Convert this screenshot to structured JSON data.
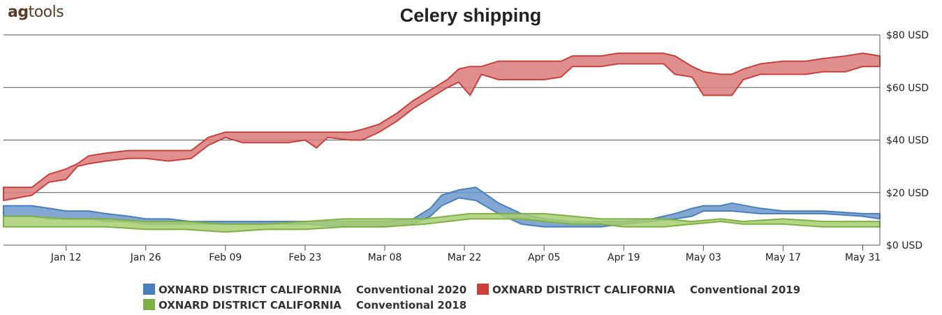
{
  "brand": {
    "logo_ag": "ag",
    "logo_tools": "tools"
  },
  "chart_data": {
    "type": "area",
    "title": "Celery shipping",
    "xlabel": "",
    "ylabel": "",
    "grid": true,
    "legend_position": "bottom",
    "x_range": [
      "Jan 01",
      "Jun 03"
    ],
    "x_ticks": [
      "Jan 12",
      "Jan 26",
      "Feb 09",
      "Feb 23",
      "Mar 08",
      "Mar 22",
      "Apr 05",
      "Apr 19",
      "May 03",
      "May 17",
      "May 31"
    ],
    "ylim": [
      0,
      80
    ],
    "y_ticks": [
      "$0 USD",
      "$20 USD",
      "$40 USD",
      "$60 USD",
      "$80 USD"
    ],
    "y_tick_values": [
      0,
      20,
      40,
      60,
      80
    ],
    "series": [
      {
        "name": "OXNARD DISTRICT CALIFORNIA     Conventional 2019",
        "color": "#c9403b",
        "fill": "#d97b79",
        "points": [
          [
            "Jan 01",
            17,
            22
          ],
          [
            "Jan 06",
            19,
            22
          ],
          [
            "Jan 09",
            24,
            27
          ],
          [
            "Jan 12",
            25,
            29
          ],
          [
            "Jan 14",
            30,
            31
          ],
          [
            "Jan 16",
            31,
            34
          ],
          [
            "Jan 19",
            32,
            35
          ],
          [
            "Jan 23",
            33,
            36
          ],
          [
            "Jan 26",
            33,
            36
          ],
          [
            "Jan 30",
            32,
            36
          ],
          [
            "Feb 03",
            33,
            36
          ],
          [
            "Feb 06",
            38,
            41
          ],
          [
            "Feb 09",
            41,
            43
          ],
          [
            "Feb 12",
            39,
            43
          ],
          [
            "Feb 16",
            39,
            43
          ],
          [
            "Feb 20",
            39,
            43
          ],
          [
            "Feb 23",
            40,
            43
          ],
          [
            "Feb 25",
            37,
            43
          ],
          [
            "Feb 27",
            41,
            43
          ],
          [
            "Mar 02",
            40,
            43
          ],
          [
            "Mar 04",
            40,
            44
          ],
          [
            "Mar 07",
            43,
            46
          ],
          [
            "Mar 10",
            47,
            50
          ],
          [
            "Mar 13",
            52,
            55
          ],
          [
            "Mar 16",
            56,
            59
          ],
          [
            "Mar 19",
            60,
            63
          ],
          [
            "Mar 21",
            62,
            67
          ],
          [
            "Mar 23",
            57,
            68
          ],
          [
            "Mar 25",
            65,
            68
          ],
          [
            "Mar 28",
            63,
            70
          ],
          [
            "Apr 01",
            63,
            70
          ],
          [
            "Apr 05",
            63,
            70
          ],
          [
            "Apr 08",
            64,
            70
          ],
          [
            "Apr 10",
            68,
            72
          ],
          [
            "Apr 15",
            68,
            72
          ],
          [
            "Apr 18",
            69,
            73
          ],
          [
            "Apr 22",
            69,
            73
          ],
          [
            "Apr 26",
            69,
            73
          ],
          [
            "Apr 28",
            65,
            72
          ],
          [
            "May 01",
            64,
            68
          ],
          [
            "May 03",
            57,
            66
          ],
          [
            "May 06",
            57,
            65
          ],
          [
            "May 08",
            57,
            65
          ],
          [
            "May 10",
            63,
            67
          ],
          [
            "May 13",
            65,
            69
          ],
          [
            "May 17",
            65,
            70
          ],
          [
            "May 21",
            65,
            70
          ],
          [
            "May 24",
            66,
            71
          ],
          [
            "May 28",
            66,
            72
          ],
          [
            "May 31",
            68,
            73
          ],
          [
            "Jun 03",
            68,
            72
          ]
        ]
      },
      {
        "name": "OXNARD DISTRICT CALIFORNIA     Conventional 2020",
        "color": "#4a7fbd",
        "fill": "#6b98ca",
        "points": [
          [
            "Jan 01",
            11,
            15
          ],
          [
            "Jan 06",
            11,
            15
          ],
          [
            "Jan 09",
            10,
            14
          ],
          [
            "Jan 12",
            10,
            13
          ],
          [
            "Jan 16",
            10,
            13
          ],
          [
            "Jan 19",
            9,
            12
          ],
          [
            "Jan 23",
            9,
            11
          ],
          [
            "Jan 26",
            8,
            10
          ],
          [
            "Jan 30",
            8,
            10
          ],
          [
            "Feb 03",
            8,
            9
          ],
          [
            "Feb 09",
            8,
            9
          ],
          [
            "Feb 16",
            8,
            9
          ],
          [
            "Feb 23",
            8,
            9
          ],
          [
            "Mar 01",
            7,
            9
          ],
          [
            "Mar 08",
            7,
            9
          ],
          [
            "Mar 13",
            8,
            10
          ],
          [
            "Mar 16",
            11,
            14
          ],
          [
            "Mar 18",
            15,
            19
          ],
          [
            "Mar 21",
            18,
            21
          ],
          [
            "Mar 24",
            17,
            22
          ],
          [
            "Mar 28",
            12,
            16
          ],
          [
            "Apr 01",
            8,
            12
          ],
          [
            "Apr 05",
            7,
            10
          ],
          [
            "Apr 10",
            7,
            9
          ],
          [
            "Apr 15",
            7,
            9
          ],
          [
            "Apr 19",
            8,
            9
          ],
          [
            "Apr 24",
            9,
            10
          ],
          [
            "Apr 28",
            10,
            12
          ],
          [
            "May 01",
            11,
            14
          ],
          [
            "May 03",
            13,
            15
          ],
          [
            "May 06",
            13,
            15
          ],
          [
            "May 08",
            13,
            16
          ],
          [
            "May 13",
            12,
            14
          ],
          [
            "May 17",
            12,
            13
          ],
          [
            "May 24",
            12,
            13
          ],
          [
            "May 31",
            11,
            12
          ],
          [
            "Jun 03",
            10,
            12
          ]
        ]
      },
      {
        "name": "OXNARD DISTRICT CALIFORNIA     Conventional 2018",
        "color": "#7fb045",
        "fill": "#a9cf72",
        "points": [
          [
            "Jan 01",
            7,
            11
          ],
          [
            "Jan 06",
            7,
            11
          ],
          [
            "Jan 12",
            7,
            10
          ],
          [
            "Jan 19",
            7,
            10
          ],
          [
            "Jan 26",
            6,
            9
          ],
          [
            "Feb 02",
            6,
            9
          ],
          [
            "Feb 09",
            5,
            8
          ],
          [
            "Feb 16",
            6,
            8
          ],
          [
            "Feb 23",
            6,
            9
          ],
          [
            "Mar 01",
            7,
            10
          ],
          [
            "Mar 08",
            7,
            10
          ],
          [
            "Mar 15",
            8,
            10
          ],
          [
            "Mar 19",
            9,
            11
          ],
          [
            "Mar 23",
            10,
            12
          ],
          [
            "Mar 26",
            10,
            12
          ],
          [
            "Apr 01",
            10,
            12
          ],
          [
            "Apr 05",
            9,
            12
          ],
          [
            "Apr 10",
            8,
            11
          ],
          [
            "Apr 15",
            8,
            10
          ],
          [
            "Apr 19",
            7,
            10
          ],
          [
            "Apr 26",
            7,
            10
          ],
          [
            "May 01",
            8,
            9
          ],
          [
            "May 06",
            9,
            10
          ],
          [
            "May 10",
            8,
            9
          ],
          [
            "May 17",
            8,
            10
          ],
          [
            "May 24",
            7,
            9
          ],
          [
            "May 31",
            7,
            9
          ],
          [
            "Jun 03",
            7,
            9
          ]
        ]
      }
    ],
    "legend": [
      {
        "name": "OXNARD DISTRICT CALIFORNIA",
        "suffix": "Conventional 2020",
        "color": "#4a7fbd"
      },
      {
        "name": "OXNARD DISTRICT CALIFORNIA",
        "suffix": "Conventional 2019",
        "color": "#c9403b"
      },
      {
        "name": "OXNARD DISTRICT CALIFORNIA",
        "suffix": "Conventional 2018",
        "color": "#7fb045"
      }
    ]
  }
}
